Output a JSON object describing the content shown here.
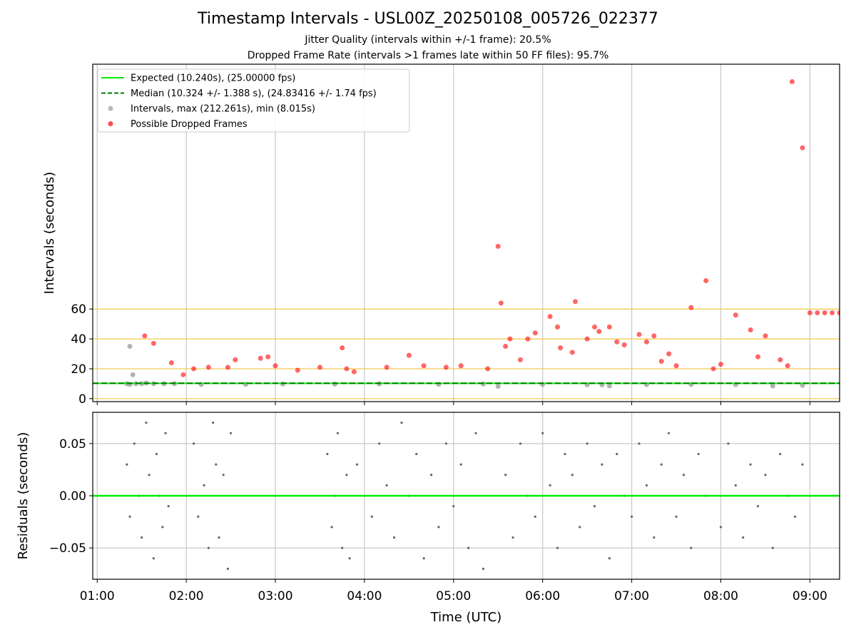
{
  "header": {
    "title": "Timestamp Intervals - USL00Z_20250108_005726_022377",
    "subtitle1": "Jitter Quality (intervals within +/-1 frame): 20.5%",
    "subtitle2": "Dropped Frame Rate (intervals >1 frames late within 50 FF files): 95.7%"
  },
  "colors": {
    "expected": "#00ee00",
    "median": "#007700",
    "interval_points": "#999999",
    "dropped_points": "#ff0000",
    "reference_lines": "#f5c842",
    "residual_points": "#666666",
    "grid": "#c8c8c8"
  },
  "chart_data": [
    {
      "type": "scatter",
      "ylabel": "Intervals (seconds)",
      "xlim": [
        "00:57",
        "09:20"
      ],
      "ylim": [
        -2,
        224
      ],
      "yticks": [
        0,
        20,
        40,
        60
      ],
      "grid": "x-axis vertical lines",
      "reference_lines_y": [
        0,
        20,
        40,
        60
      ],
      "legend_position": "top-left",
      "legend": [
        {
          "label": "Expected (10.240s), (25.00000 fps)",
          "kind": "solid-line",
          "color": "#00ee00"
        },
        {
          "label": "Median (10.324 +/- 1.388 s), (24.83416 +/- 1.74 fps)",
          "kind": "dashed-line",
          "color": "#007700"
        },
        {
          "label": "Intervals, max (212.261s), min (8.015s)",
          "kind": "marker",
          "color": "#999999"
        },
        {
          "label": "Possible Dropped Frames",
          "kind": "marker",
          "color": "#ff0000"
        }
      ],
      "series": [
        {
          "name": "Expected (10.240s), (25.00000 fps)",
          "style": "line",
          "value": 10.24
        },
        {
          "name": "Median (10.324 +/- 1.388 s), (24.83416 +/- 1.74 fps)",
          "style": "dashed-line",
          "value": 10.324
        },
        {
          "name": "Intervals, max (212.261s), min (8.015s)",
          "style": "scatter",
          "x": [
            "01:20",
            "01:22",
            "01:24",
            "01:22",
            "01:26",
            "01:30",
            "01:33",
            "01:38",
            "01:45",
            "01:52",
            "02:10",
            "02:40",
            "03:05",
            "03:40",
            "04:10",
            "04:50",
            "05:20",
            "05:30",
            "06:00",
            "06:30",
            "06:40",
            "06:45",
            "07:10",
            "07:40",
            "08:10",
            "08:35",
            "08:55"
          ],
          "y": [
            10.0,
            35.0,
            16.0,
            9.5,
            10.0,
            10.0,
            10.5,
            10.0,
            10.0,
            10.0,
            9.5,
            9.6,
            9.8,
            9.7,
            9.9,
            9.6,
            9.8,
            8.2,
            9.5,
            9.3,
            9.2,
            8.5,
            9.4,
            9.5,
            9.4,
            8.5,
            8.9
          ]
        },
        {
          "name": "Possible Dropped Frames",
          "style": "scatter",
          "x": [
            "01:32",
            "01:38",
            "01:50",
            "01:58",
            "02:05",
            "02:15",
            "02:28",
            "02:33",
            "02:50",
            "02:55",
            "03:00",
            "03:15",
            "03:30",
            "03:45",
            "03:48",
            "03:53",
            "04:15",
            "04:30",
            "04:40",
            "04:55",
            "05:05",
            "05:23",
            "05:30",
            "05:32",
            "05:35",
            "05:38",
            "05:45",
            "05:50",
            "05:55",
            "06:05",
            "06:10",
            "06:12",
            "06:20",
            "06:22",
            "06:30",
            "06:35",
            "06:38",
            "06:45",
            "06:50",
            "06:55",
            "07:05",
            "07:10",
            "07:15",
            "07:20",
            "07:25",
            "07:30",
            "07:40",
            "07:50",
            "07:55",
            "08:00",
            "08:10",
            "08:20",
            "08:25",
            "08:30",
            "08:40",
            "08:45",
            "08:48",
            "08:55",
            "09:00",
            "09:05",
            "09:10",
            "09:15",
            "09:20"
          ],
          "y": [
            42.0,
            37.0,
            24.0,
            16.0,
            20.0,
            21.0,
            21.0,
            26.0,
            27.0,
            28.0,
            22.0,
            19.0,
            21.0,
            34.0,
            20.0,
            18.0,
            21.0,
            29.0,
            22.0,
            21.0,
            22.0,
            20.0,
            102.0,
            64.0,
            35.0,
            40.0,
            26.0,
            40.0,
            44.0,
            55.0,
            48.0,
            34.0,
            31.0,
            65.0,
            40.0,
            48.0,
            45.0,
            48.0,
            38.0,
            36.0,
            43.0,
            38.0,
            42.0,
            25.0,
            30.0,
            22.0,
            61.0,
            79.0,
            20.0,
            23.0,
            56.0,
            46.0,
            28.0,
            42.0,
            26.0,
            22.0,
            212.3,
            168.0,
            57.5,
            57.5,
            57.5,
            57.5,
            57.5
          ]
        }
      ]
    },
    {
      "type": "scatter",
      "ylabel": "Residuals (seconds)",
      "xlabel": "Time (UTC)",
      "xlim": [
        "00:57",
        "09:20"
      ],
      "ylim": [
        -0.08,
        0.08
      ],
      "yticks": [
        "0.05",
        "0.00",
        "−0.05"
      ],
      "xticks": [
        "01:00",
        "02:00",
        "03:00",
        "04:00",
        "05:00",
        "06:00",
        "07:00",
        "08:00",
        "09:00"
      ],
      "grid": true,
      "series": [
        {
          "name": "Residuals",
          "style": "scatter",
          "color": "#666666",
          "x": [
            "01:20",
            "01:22",
            "01:25",
            "01:28",
            "01:30",
            "01:33",
            "01:35",
            "01:38",
            "01:40",
            "01:42",
            "01:44",
            "01:46",
            "01:48",
            "02:05",
            "02:08",
            "02:12",
            "02:15",
            "02:18",
            "02:20",
            "02:22",
            "02:25",
            "02:28",
            "02:30",
            "03:35",
            "03:38",
            "03:40",
            "03:42",
            "03:45",
            "03:48",
            "03:50",
            "03:55",
            "04:05",
            "04:10",
            "04:15",
            "04:20",
            "04:25",
            "04:30",
            "04:35",
            "04:40",
            "04:45",
            "04:50",
            "04:55",
            "05:00",
            "05:05",
            "05:10",
            "05:15",
            "05:20",
            "05:35",
            "05:40",
            "05:45",
            "05:50",
            "05:55",
            "06:00",
            "06:05",
            "06:10",
            "06:15",
            "06:20",
            "06:25",
            "06:30",
            "06:35",
            "06:40",
            "06:45",
            "06:50",
            "06:55",
            "07:00",
            "07:05",
            "07:10",
            "07:15",
            "07:20",
            "07:25",
            "07:30",
            "07:35",
            "07:40",
            "07:45",
            "07:50",
            "08:00",
            "08:05",
            "08:10",
            "08:15",
            "08:20",
            "08:25",
            "08:30",
            "08:35",
            "08:40",
            "08:45",
            "08:50",
            "08:55"
          ],
          "y": [
            0.03,
            -0.02,
            0.05,
            0.0,
            -0.04,
            0.07,
            0.02,
            -0.06,
            0.04,
            0.0,
            -0.03,
            0.06,
            -0.01,
            0.05,
            -0.02,
            0.01,
            -0.05,
            0.07,
            0.03,
            -0.04,
            0.02,
            -0.07,
            0.06,
            0.04,
            -0.03,
            0.0,
            0.06,
            -0.05,
            0.02,
            -0.06,
            0.03,
            -0.02,
            0.05,
            0.01,
            -0.04,
            0.07,
            0.0,
            0.04,
            -0.06,
            0.02,
            -0.03,
            0.05,
            -0.01,
            0.03,
            -0.05,
            0.06,
            -0.07,
            0.02,
            -0.04,
            0.05,
            0.0,
            -0.02,
            0.06,
            0.01,
            -0.05,
            0.04,
            0.02,
            -0.03,
            0.05,
            -0.01,
            0.03,
            -0.06,
            0.04,
            0.0,
            -0.02,
            0.05,
            0.01,
            -0.04,
            0.03,
            0.06,
            -0.02,
            0.02,
            -0.05,
            0.04,
            0.0,
            -0.03,
            0.05,
            0.01,
            -0.04,
            0.03,
            -0.01,
            0.02,
            -0.05,
            0.04,
            0.0,
            -0.02,
            0.03
          ]
        }
      ]
    }
  ]
}
